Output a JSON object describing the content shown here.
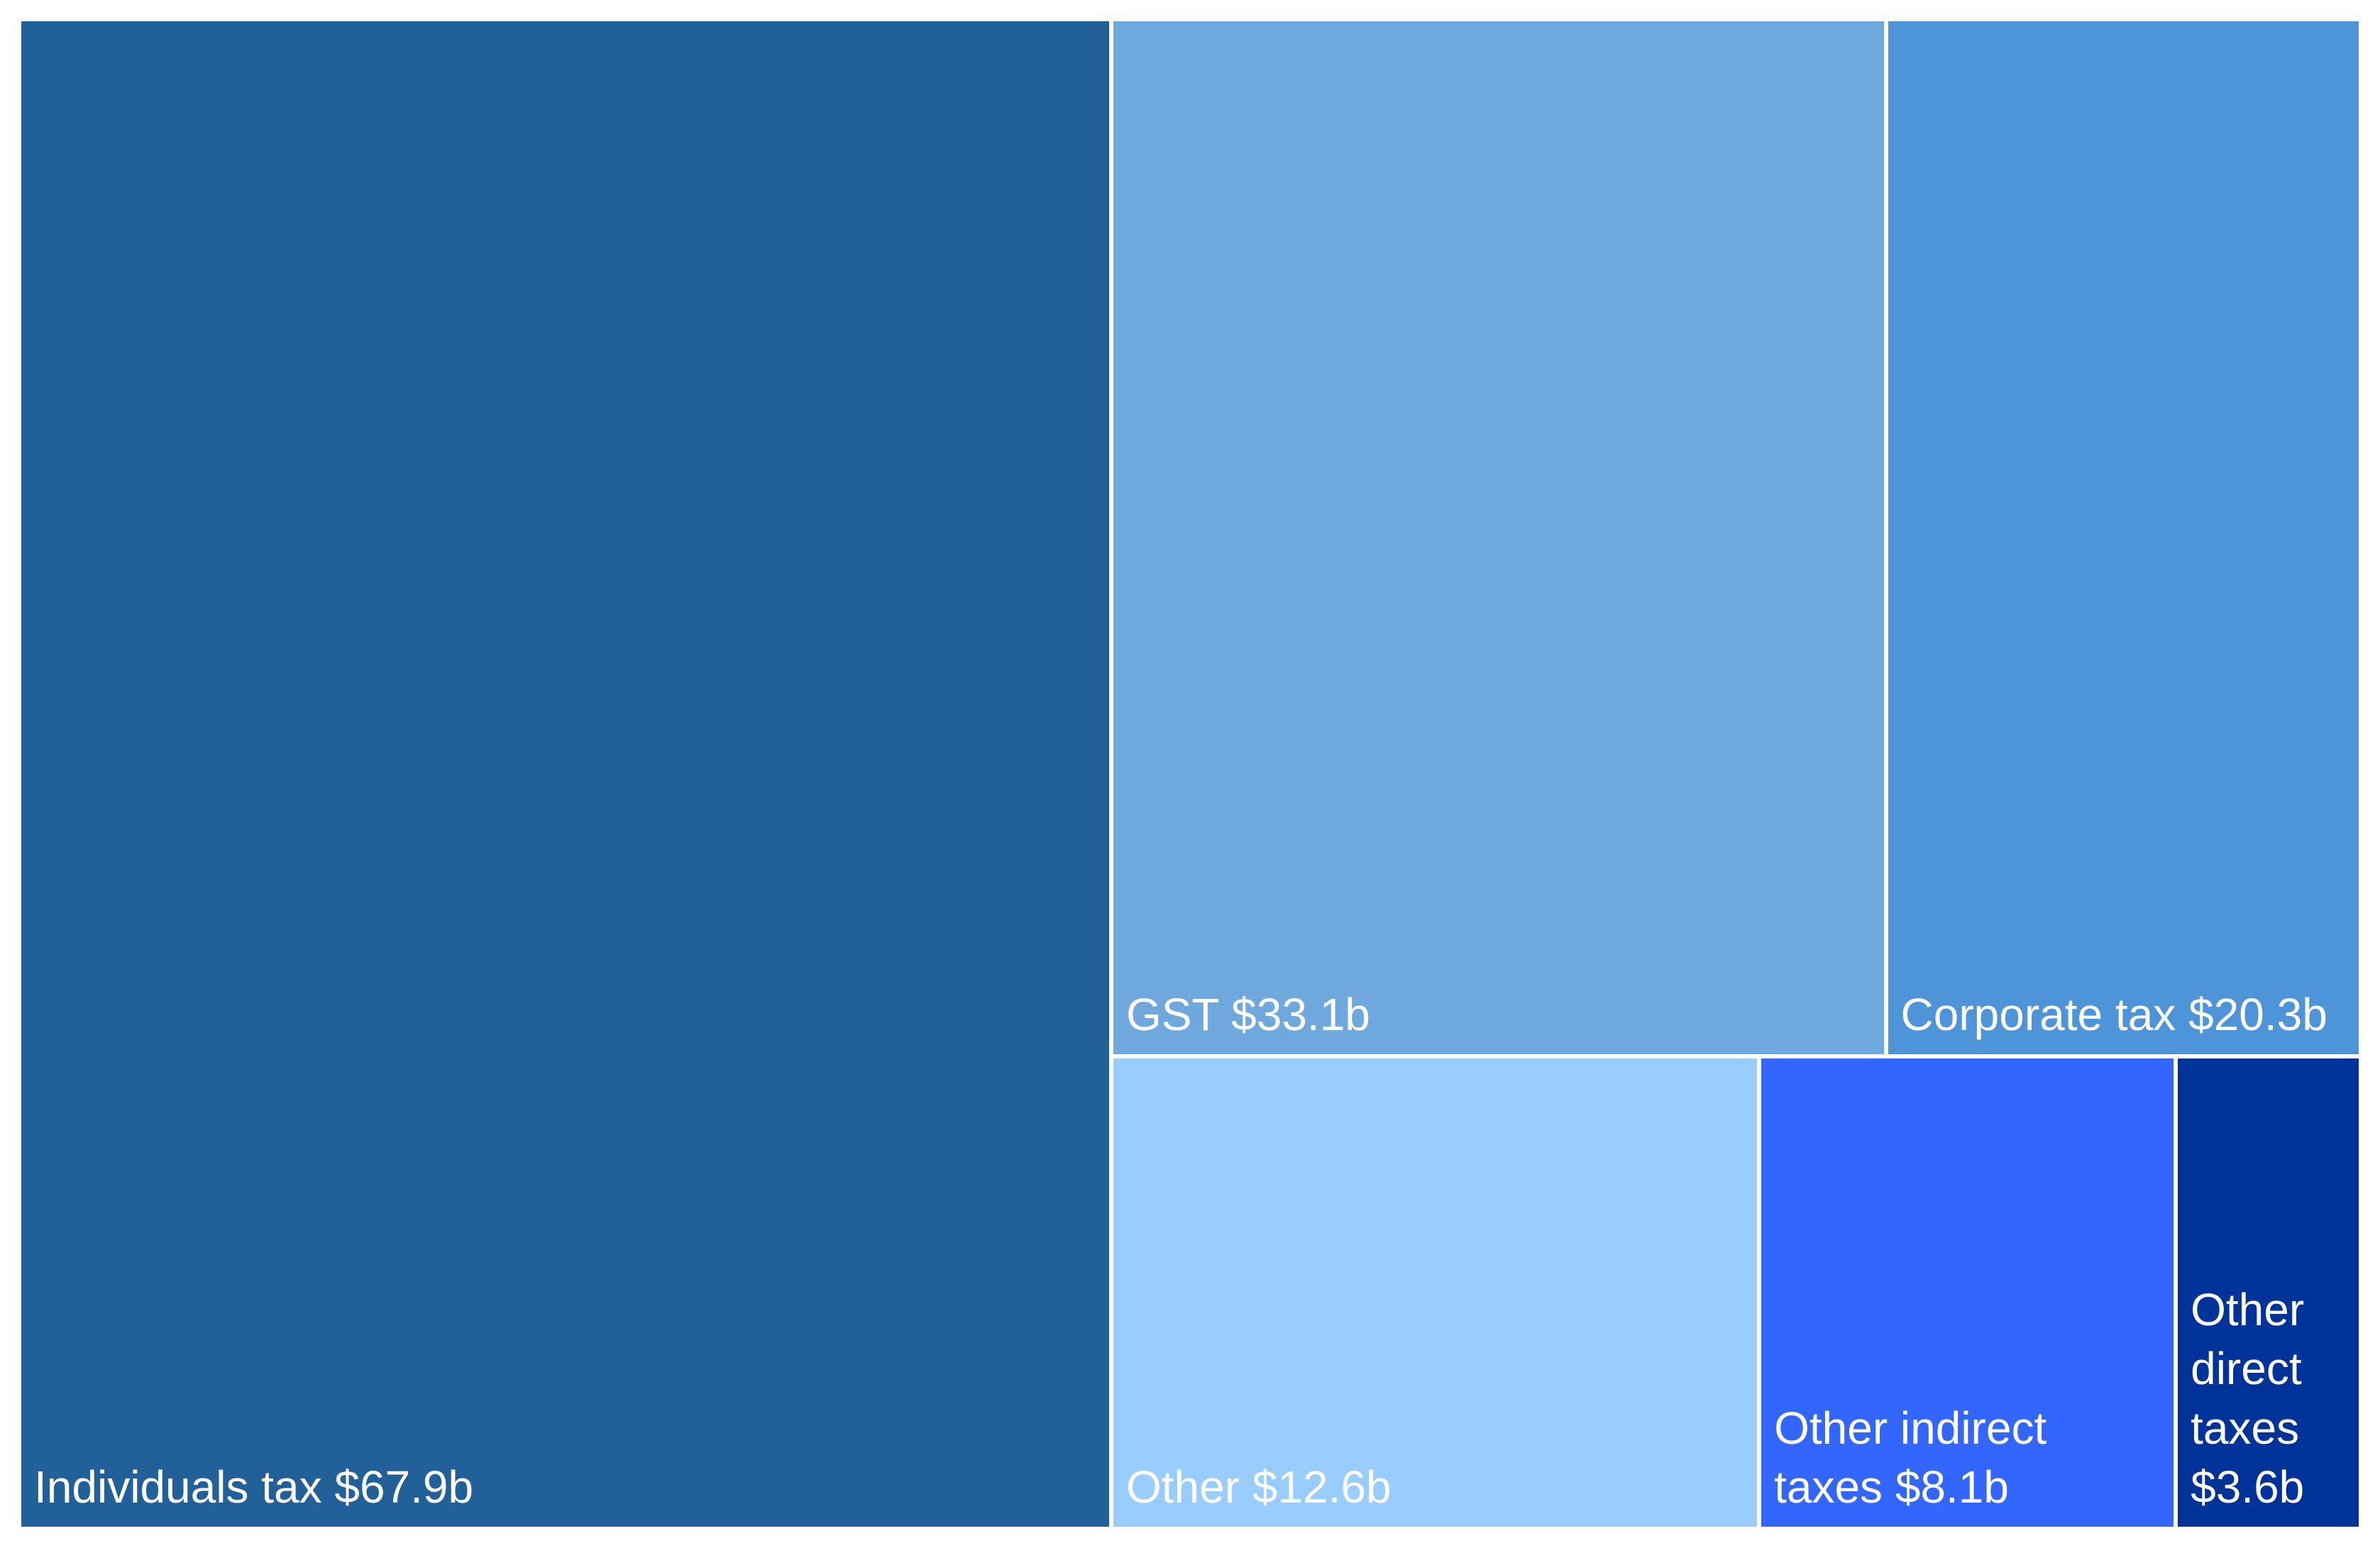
{
  "chart_data": {
    "type": "treemap",
    "categories": [
      "Individuals tax",
      "GST",
      "Corporate tax",
      "Other",
      "Other indirect taxes",
      "Other direct taxes"
    ],
    "values": [
      67.9,
      33.1,
      20.3,
      12.6,
      8.1,
      3.6
    ],
    "value_labels": [
      "$67.9b",
      "$33.1b",
      "$20.3b",
      "$12.6b",
      "$8.1b",
      "$3.6b"
    ],
    "colors": [
      "#22609a",
      "#6fa8dc",
      "#4d94d8",
      "#99ccff",
      "#3366ff",
      "#003399"
    ]
  }
}
